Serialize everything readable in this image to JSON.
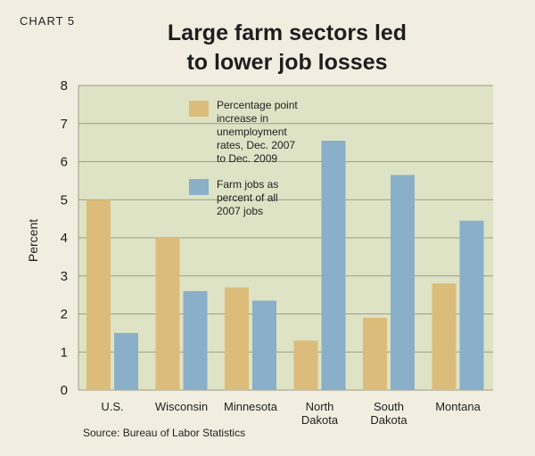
{
  "header": {
    "chart_number": "CHART 5",
    "title_lines": [
      "Large farm sectors led",
      "to lower job losses"
    ]
  },
  "source": "Source: Bureau of Labor Statistics",
  "colors": {
    "background": "#f1eee1",
    "plot_background": "#dfe3c5",
    "grid": "#9a9e86",
    "tan": "#dcbc7a",
    "blue": "#8aafc8"
  },
  "chart_data": {
    "type": "bar",
    "title": "Large farm sectors led to lower job losses",
    "ylabel": "Percent",
    "xlabel": "",
    "ylim": [
      0,
      8
    ],
    "yticks": [
      0,
      1,
      2,
      3,
      4,
      5,
      6,
      7,
      8
    ],
    "grid": true,
    "legend_position": "top-center",
    "categories": [
      [
        "U.S."
      ],
      [
        "Wisconsin"
      ],
      [
        "Minnesota"
      ],
      [
        "North",
        "Dakota"
      ],
      [
        "South",
        "Dakota"
      ],
      [
        "Montana"
      ]
    ],
    "series": [
      {
        "name_lines": [
          "Percentage point",
          "increase in",
          "unemployment",
          "rates, Dec. 2007",
          "to Dec. 2009"
        ],
        "color": "#dcbc7a",
        "values": [
          5.0,
          4.0,
          2.7,
          1.3,
          1.9,
          2.8
        ]
      },
      {
        "name_lines": [
          "Farm jobs as",
          "percent of all",
          "2007 jobs"
        ],
        "color": "#8aafc8",
        "values": [
          1.5,
          2.6,
          2.35,
          6.55,
          5.65,
          4.45
        ]
      }
    ]
  }
}
